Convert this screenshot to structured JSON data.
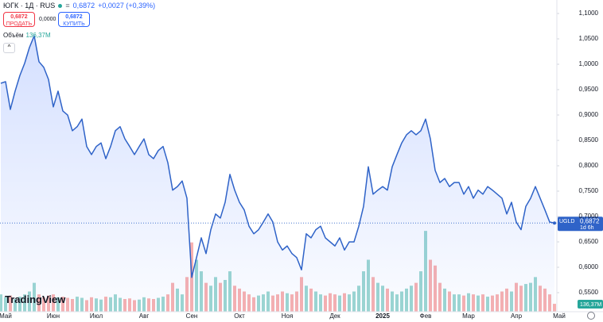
{
  "header": {
    "symbol": "ЮГК · 1Д · RUS",
    "last": "0,6872",
    "change": "+0,0027 (+0,39%)",
    "sell_price": "0,6872",
    "sell_label": "ПРОДАТЬ",
    "spread": "0,0000",
    "buy_price": "0,6872",
    "buy_label": "КУПИТЬ",
    "volume_title": "Объём",
    "volume_value": "136,37M",
    "logo": "TradingView"
  },
  "chart_data": {
    "type": "line",
    "categories": [
      null,
      "Май",
      null,
      null,
      null,
      null,
      null,
      null,
      null,
      null,
      null,
      "Июн",
      null,
      null,
      null,
      null,
      null,
      null,
      null,
      null,
      "Июл",
      null,
      null,
      null,
      null,
      null,
      null,
      null,
      null,
      null,
      "Авг",
      null,
      null,
      null,
      null,
      null,
      null,
      null,
      null,
      null,
      "Сен",
      null,
      null,
      null,
      null,
      null,
      null,
      null,
      null,
      null,
      "Окт",
      null,
      null,
      null,
      null,
      null,
      null,
      null,
      null,
      null,
      "Ноя",
      null,
      null,
      null,
      null,
      null,
      null,
      null,
      null,
      null,
      "Дек",
      null,
      null,
      null,
      null,
      null,
      null,
      null,
      null,
      null,
      "2025",
      null,
      null,
      null,
      null,
      null,
      null,
      null,
      null,
      "Фев",
      null,
      null,
      null,
      null,
      null,
      null,
      null,
      null,
      "Мар",
      null,
      null,
      null,
      null,
      null,
      null,
      null,
      null,
      null,
      "Апр",
      null,
      null,
      null,
      null,
      null,
      null,
      null,
      null,
      "Май"
    ],
    "series": [
      {
        "name": "UGLD",
        "color": "#2f63c8",
        "values": [
          0.9625,
          0.9657,
          0.911,
          0.947,
          0.978,
          1.002,
          1.033,
          1.056,
          1.005,
          0.994,
          0.97,
          0.916,
          0.947,
          0.908,
          0.9,
          0.869,
          0.877,
          0.892,
          0.838,
          0.822,
          0.838,
          0.845,
          0.814,
          0.838,
          0.869,
          0.877,
          0.853,
          0.838,
          0.822,
          0.838,
          0.853,
          0.822,
          0.814,
          0.83,
          0.838,
          0.806,
          0.752,
          0.759,
          0.77,
          0.736,
          0.58,
          0.619,
          0.658,
          0.627,
          0.674,
          0.705,
          0.697,
          0.728,
          0.783,
          0.752,
          0.728,
          0.713,
          0.681,
          0.666,
          0.674,
          0.689,
          0.705,
          0.689,
          0.65,
          0.634,
          0.642,
          0.627,
          0.619,
          0.595,
          0.666,
          0.658,
          0.674,
          0.681,
          0.658,
          0.65,
          0.642,
          0.658,
          0.634,
          0.65,
          0.65,
          0.681,
          0.72,
          0.798,
          0.744,
          0.752,
          0.759,
          0.752,
          0.798,
          0.822,
          0.845,
          0.861,
          0.869,
          0.861,
          0.869,
          0.892,
          0.853,
          0.791,
          0.767,
          0.775,
          0.759,
          0.767,
          0.767,
          0.744,
          0.759,
          0.736,
          0.752,
          0.744,
          0.759,
          0.752,
          0.744,
          0.736,
          0.705,
          0.728,
          0.689,
          0.674,
          0.72,
          0.736,
          0.759,
          0.736,
          0.713,
          0.689,
          0.6872,
          null
        ]
      },
      {
        "name": "Объём",
        "axis": "volume",
        "values": [
          300,
          250,
          280,
          220,
          260,
          300,
          350,
          500,
          300,
          250,
          280,
          300,
          250,
          260,
          240,
          220,
          260,
          240,
          200,
          250,
          230,
          210,
          260,
          250,
          300,
          240,
          220,
          230,
          200,
          210,
          250,
          230,
          220,
          240,
          260,
          300,
          500,
          400,
          300,
          600,
          1200,
          900,
          700,
          500,
          450,
          600,
          500,
          550,
          700,
          450,
          400,
          350,
          300,
          250,
          280,
          300,
          350,
          280,
          300,
          350,
          320,
          300,
          350,
          600,
          450,
          400,
          350,
          300,
          280,
          320,
          300,
          280,
          320,
          300,
          350,
          450,
          700,
          900,
          600,
          500,
          450,
          400,
          350,
          300,
          350,
          400,
          450,
          500,
          700,
          1400,
          900,
          800,
          500,
          400,
          350,
          300,
          300,
          280,
          320,
          300,
          280,
          300,
          260,
          280,
          300,
          350,
          400,
          350,
          500,
          450,
          480,
          500,
          600,
          450,
          400,
          300,
          136.37,
          null
        ]
      }
    ],
    "up_color": "#26a69a",
    "down_color": "#ef5350",
    "last_price_label": "0,6872",
    "last_price_name": "UGLD",
    "countdown": "1d 6h",
    "ylim": [
      0.5125,
      1.1266
    ],
    "volume_ylim": [
      0,
      5400
    ],
    "yticks": [
      {
        "value": 0.55,
        "label": "0,5500"
      },
      {
        "value": 0.6,
        "label": "0,6000"
      },
      {
        "value": 0.65,
        "label": "0,6500"
      },
      {
        "value": 0.7,
        "label": "0,7000"
      },
      {
        "value": 0.75,
        "label": "0,7500"
      },
      {
        "value": 0.8,
        "label": "0,8000"
      },
      {
        "value": 0.85,
        "label": "0,8500"
      },
      {
        "value": 0.9,
        "label": "0,9000"
      },
      {
        "value": 0.95,
        "label": "0,9500"
      },
      {
        "value": 1.0,
        "label": "1,0000"
      },
      {
        "value": 1.05,
        "label": "1,0500"
      },
      {
        "value": 1.1,
        "label": "1,1000"
      }
    ],
    "grid": false
  }
}
